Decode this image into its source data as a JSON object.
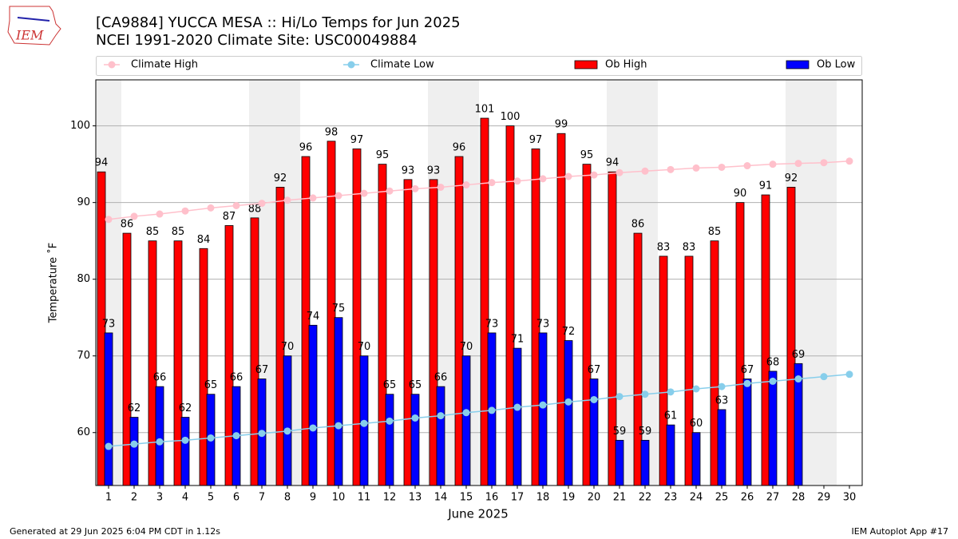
{
  "chart_data": {
    "type": "bar_line",
    "title": "[CA9884] YUCCA MESA :: Hi/Lo Temps for Jun 2025",
    "subtitle": "NCEI 1991-2020 Climate Site: USC00049884",
    "xlabel": "June 2025",
    "ylabel": "Temperature ˚F",
    "footer_left": "Generated at 29 Jun 2025 6:04 PM CDT in 1.12s",
    "footer_right": "IEM Autoplot App #17",
    "logo_text": "IEM",
    "x": [
      1,
      2,
      3,
      4,
      5,
      6,
      7,
      8,
      9,
      10,
      11,
      12,
      13,
      14,
      15,
      16,
      17,
      18,
      19,
      20,
      21,
      22,
      23,
      24,
      25,
      26,
      27,
      28,
      29,
      30
    ],
    "xlim": [
      0.5,
      30.5
    ],
    "xticks": [
      1,
      2,
      3,
      4,
      5,
      6,
      7,
      8,
      9,
      10,
      11,
      12,
      13,
      14,
      15,
      16,
      17,
      18,
      19,
      20,
      21,
      22,
      23,
      24,
      25,
      26,
      27,
      28,
      29,
      30
    ],
    "ylim": [
      53.1,
      106.0
    ],
    "yticks": [
      60,
      70,
      80,
      90,
      100
    ],
    "grid": true,
    "shaded_days": [
      1,
      7,
      8,
      14,
      15,
      21,
      22,
      28,
      29
    ],
    "shade_color": "#efefef",
    "series": [
      {
        "name": "Climate High",
        "kind": "line",
        "color": "pink",
        "values": [
          87.8,
          88.2,
          88.5,
          88.9,
          89.3,
          89.6,
          89.9,
          90.3,
          90.6,
          90.9,
          91.2,
          91.5,
          91.8,
          92.0,
          92.3,
          92.6,
          92.8,
          93.1,
          93.4,
          93.6,
          93.9,
          94.1,
          94.3,
          94.5,
          94.6,
          94.8,
          95.0,
          95.1,
          95.2,
          95.4
        ]
      },
      {
        "name": "Climate Low",
        "kind": "line",
        "color": "skyblue",
        "values": [
          58.2,
          58.5,
          58.8,
          59.0,
          59.3,
          59.6,
          59.9,
          60.2,
          60.6,
          60.9,
          61.2,
          61.5,
          61.9,
          62.2,
          62.6,
          62.9,
          63.3,
          63.6,
          64.0,
          64.3,
          64.7,
          65.0,
          65.3,
          65.7,
          66.0,
          66.4,
          66.7,
          67.0,
          67.3,
          67.6
        ]
      },
      {
        "name": "Ob High",
        "kind": "bar",
        "color": "red",
        "values": [
          94,
          86,
          85,
          85,
          84,
          87,
          88,
          92,
          96,
          98,
          97,
          95,
          93,
          93,
          96,
          101,
          100,
          97,
          99,
          95,
          94,
          86,
          83,
          83,
          85,
          90,
          91,
          92,
          null,
          null
        ]
      },
      {
        "name": "Ob Low",
        "kind": "bar",
        "color": "blue",
        "values": [
          73,
          62,
          66,
          62,
          65,
          66,
          67,
          70,
          74,
          75,
          70,
          65,
          65,
          66,
          70,
          73,
          71,
          73,
          72,
          67,
          59,
          59,
          61,
          60,
          63,
          67,
          68,
          69,
          null,
          null
        ]
      }
    ]
  }
}
